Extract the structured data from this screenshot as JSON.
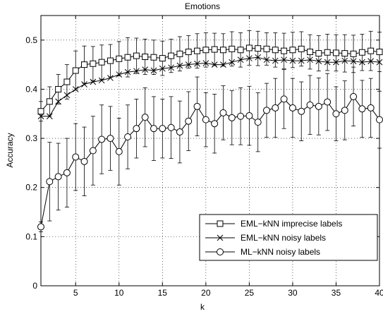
{
  "chart_data": {
    "type": "line",
    "title": "Emotions",
    "xlabel": "k",
    "ylabel": "Accuracy",
    "xlim": [
      1,
      40
    ],
    "ylim": [
      0,
      0.55
    ],
    "xticks": [
      5,
      10,
      15,
      20,
      25,
      30,
      35,
      40
    ],
    "yticks": [
      0,
      0.1,
      0.2,
      0.3,
      0.4,
      0.5
    ],
    "xtick_labels": [
      "5",
      "10",
      "15",
      "20",
      "25",
      "30",
      "35",
      "40"
    ],
    "ytick_labels": [
      "0",
      "0.1",
      "0.2",
      "0.3",
      "0.4",
      "0.5"
    ],
    "grid": true,
    "legend_position": "bottom-right",
    "x": [
      1,
      2,
      3,
      4,
      5,
      6,
      7,
      8,
      9,
      10,
      11,
      12,
      13,
      14,
      15,
      16,
      17,
      18,
      19,
      20,
      21,
      22,
      23,
      24,
      25,
      26,
      27,
      28,
      29,
      30,
      31,
      32,
      33,
      34,
      35,
      36,
      37,
      38,
      39,
      40
    ],
    "series": [
      {
        "name": "EML−kNN imprecise labels",
        "marker": "square",
        "values": [
          0.355,
          0.375,
          0.4,
          0.415,
          0.438,
          0.45,
          0.452,
          0.455,
          0.458,
          0.462,
          0.465,
          0.468,
          0.466,
          0.465,
          0.463,
          0.468,
          0.472,
          0.476,
          0.478,
          0.48,
          0.481,
          0.48,
          0.482,
          0.48,
          0.484,
          0.483,
          0.482,
          0.48,
          0.478,
          0.48,
          0.482,
          0.476,
          0.473,
          0.475,
          0.474,
          0.473,
          0.472,
          0.475,
          0.478,
          0.476
        ],
        "errors": [
          0.02,
          0.03,
          0.03,
          0.035,
          0.04,
          0.038,
          0.035,
          0.035,
          0.033,
          0.035,
          0.04,
          0.036,
          0.036,
          0.035,
          0.035,
          0.034,
          0.035,
          0.033,
          0.035,
          0.035,
          0.033,
          0.033,
          0.035,
          0.035,
          0.035,
          0.035,
          0.033,
          0.035,
          0.036,
          0.036,
          0.035,
          0.035,
          0.036,
          0.037,
          0.037,
          0.038,
          0.038,
          0.037,
          0.04,
          0.04
        ]
      },
      {
        "name": "EML−kNN noisy labels",
        "marker": "x",
        "values": [
          0.345,
          0.345,
          0.375,
          0.388,
          0.4,
          0.41,
          0.415,
          0.418,
          0.423,
          0.43,
          0.435,
          0.437,
          0.44,
          0.438,
          0.442,
          0.444,
          0.448,
          0.45,
          0.452,
          0.453,
          0.45,
          0.45,
          0.455,
          0.46,
          0.463,
          0.465,
          0.46,
          0.458,
          0.46,
          0.458,
          0.458,
          0.46,
          0.457,
          0.455,
          0.455,
          0.458,
          0.457,
          0.455,
          0.457,
          0.455
        ]
      },
      {
        "name": "ML−kNN noisy labels",
        "marker": "circle",
        "values": [
          0.12,
          0.212,
          0.222,
          0.23,
          0.262,
          0.253,
          0.275,
          0.298,
          0.3,
          0.273,
          0.303,
          0.32,
          0.343,
          0.32,
          0.32,
          0.322,
          0.313,
          0.335,
          0.365,
          0.338,
          0.33,
          0.352,
          0.342,
          0.345,
          0.346,
          0.333,
          0.357,
          0.362,
          0.38,
          0.362,
          0.355,
          0.368,
          0.365,
          0.374,
          0.35,
          0.357,
          0.385,
          0.36,
          0.362,
          0.338
        ],
        "errors": [
          0.01,
          0.08,
          0.068,
          0.07,
          0.068,
          0.07,
          0.07,
          0.07,
          0.065,
          0.068,
          0.065,
          0.06,
          0.06,
          0.065,
          0.06,
          0.063,
          0.063,
          0.06,
          0.06,
          0.055,
          0.06,
          0.055,
          0.055,
          0.058,
          0.06,
          0.06,
          0.055,
          0.06,
          0.06,
          0.06,
          0.06,
          0.06,
          0.058,
          0.058,
          0.055,
          0.06,
          0.06,
          0.058,
          0.06,
          0.058
        ]
      }
    ]
  }
}
